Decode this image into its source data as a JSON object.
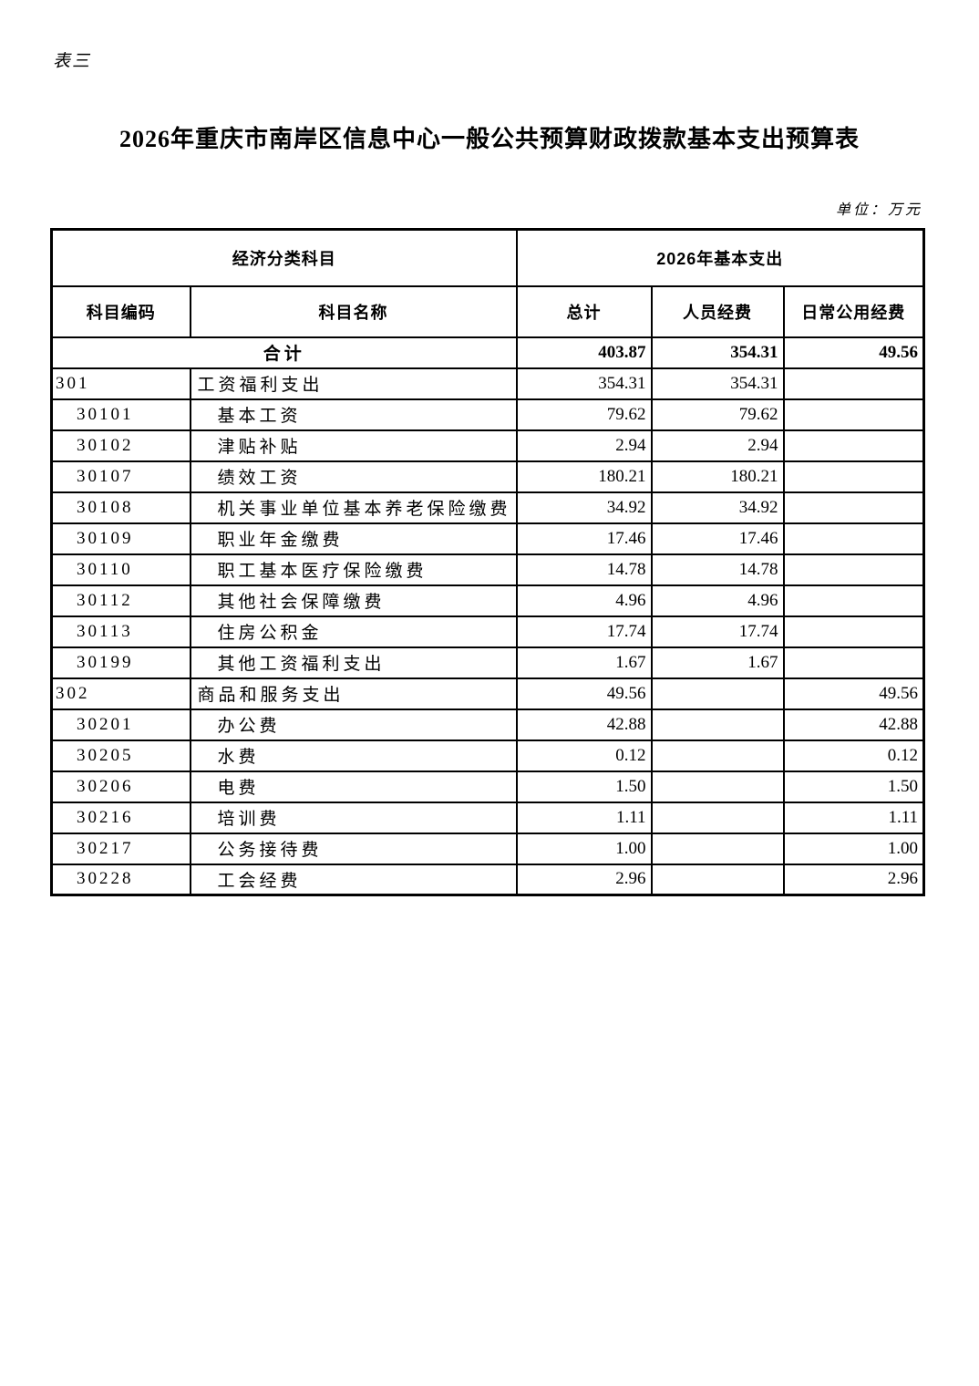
{
  "page": {
    "corner_label": "表三",
    "title": "2026年重庆市南岸区信息中心一般公共预算财政拨款基本支出预算表",
    "unit_note": "单位：万元"
  },
  "table": {
    "header": {
      "group_economic": "经济分类科目",
      "group_expenditure": "2026年基本支出",
      "col_code": "科目编码",
      "col_name": "科目名称",
      "col_total": "总计",
      "col_personnel": "人员经费",
      "col_daily": "日常公用经费"
    },
    "rows": [
      {
        "type": "total",
        "code": "",
        "name": "合计",
        "total": "403.87",
        "personnel": "354.31",
        "daily": "49.56"
      },
      {
        "type": "group",
        "code": "301",
        "name": "工资福利支出",
        "total": "354.31",
        "personnel": "354.31",
        "daily": ""
      },
      {
        "type": "sub",
        "code": "30101",
        "name": "基本工资",
        "total": "79.62",
        "personnel": "79.62",
        "daily": ""
      },
      {
        "type": "sub",
        "code": "30102",
        "name": "津贴补贴",
        "total": "2.94",
        "personnel": "2.94",
        "daily": ""
      },
      {
        "type": "sub",
        "code": "30107",
        "name": "绩效工资",
        "total": "180.21",
        "personnel": "180.21",
        "daily": ""
      },
      {
        "type": "sub",
        "code": "30108",
        "name": "机关事业单位基本养老保险缴费",
        "total": "34.92",
        "personnel": "34.92",
        "daily": ""
      },
      {
        "type": "sub",
        "code": "30109",
        "name": "职业年金缴费",
        "total": "17.46",
        "personnel": "17.46",
        "daily": ""
      },
      {
        "type": "sub",
        "code": "30110",
        "name": "职工基本医疗保险缴费",
        "total": "14.78",
        "personnel": "14.78",
        "daily": ""
      },
      {
        "type": "sub",
        "code": "30112",
        "name": "其他社会保障缴费",
        "total": "4.96",
        "personnel": "4.96",
        "daily": ""
      },
      {
        "type": "sub",
        "code": "30113",
        "name": "住房公积金",
        "total": "17.74",
        "personnel": "17.74",
        "daily": ""
      },
      {
        "type": "sub",
        "code": "30199",
        "name": "其他工资福利支出",
        "total": "1.67",
        "personnel": "1.67",
        "daily": ""
      },
      {
        "type": "group",
        "code": "302",
        "name": "商品和服务支出",
        "total": "49.56",
        "personnel": "",
        "daily": "49.56"
      },
      {
        "type": "sub",
        "code": "30201",
        "name": "办公费",
        "total": "42.88",
        "personnel": "",
        "daily": "42.88"
      },
      {
        "type": "sub",
        "code": "30205",
        "name": "水费",
        "total": "0.12",
        "personnel": "",
        "daily": "0.12"
      },
      {
        "type": "sub",
        "code": "30206",
        "name": "电费",
        "total": "1.50",
        "personnel": "",
        "daily": "1.50"
      },
      {
        "type": "sub",
        "code": "30216",
        "name": "培训费",
        "total": "1.11",
        "personnel": "",
        "daily": "1.11"
      },
      {
        "type": "sub",
        "code": "30217",
        "name": "公务接待费",
        "total": "1.00",
        "personnel": "",
        "daily": "1.00"
      },
      {
        "type": "sub",
        "code": "30228",
        "name": "工会经费",
        "total": "2.96",
        "personnel": "",
        "daily": "2.96"
      }
    ]
  }
}
